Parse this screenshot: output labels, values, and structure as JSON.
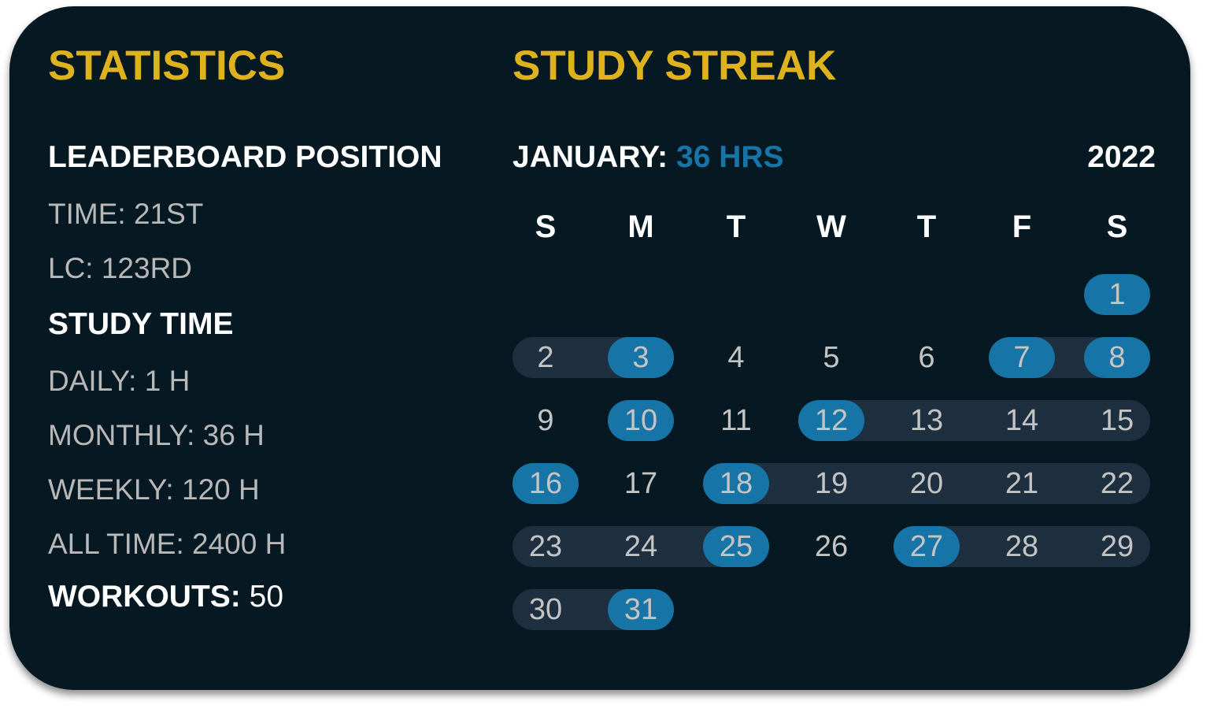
{
  "statistics": {
    "title": "STATISTICS",
    "leaderboard_heading": "LEADERBOARD POSITION",
    "time_rank": "TIME: 21ST",
    "lc_rank": "LC: 123RD",
    "study_time_heading": "STUDY TIME",
    "daily": "DAILY: 1 H",
    "monthly": "MONTHLY: 36 H",
    "weekly": "WEEKLY: 120 H",
    "all_time": "ALL TIME: 2400 H",
    "workouts_label": "WORKOUTS:",
    "workouts_value": " 50"
  },
  "streak": {
    "title": "STUDY STREAK",
    "month_label": "JANUARY: ",
    "month_hours": "36 HRS",
    "year": "2022",
    "weekdays": [
      "S",
      "M",
      "T",
      "W",
      "T",
      "F",
      "S"
    ],
    "first_weekday_index": 6,
    "days_in_month": 31,
    "highlighted_days": [
      1,
      3,
      7,
      8,
      10,
      12,
      16,
      18,
      25,
      27,
      31
    ],
    "streak_ranges": [
      [
        2,
        3
      ],
      [
        7,
        8
      ],
      [
        12,
        15
      ],
      [
        18,
        22
      ],
      [
        23,
        25
      ],
      [
        27,
        29
      ],
      [
        30,
        31
      ]
    ]
  },
  "colors": {
    "background": "#061821",
    "title": "#DDB21E",
    "accent": "#1674A6",
    "streak_band": "#1E3040",
    "muted_text": "#B8B8B8"
  }
}
